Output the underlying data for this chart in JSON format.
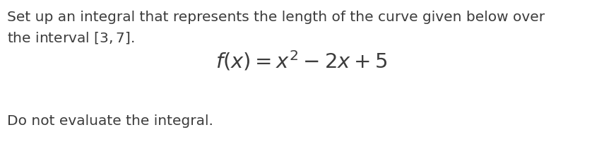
{
  "background_color": "#ffffff",
  "text_color": "#3c3c3c",
  "line1": "Set up an integral that represents the length of the curve given below over",
  "line2": "the interval $[3, 7]$.",
  "formula": "$f(x) = x^2 - 2x + 5$",
  "line3": "Do not evaluate the integral.",
  "text_fontsize": 14.5,
  "formula_fontsize": 21,
  "fig_width": 8.55,
  "fig_height": 2.11,
  "dpi": 100
}
